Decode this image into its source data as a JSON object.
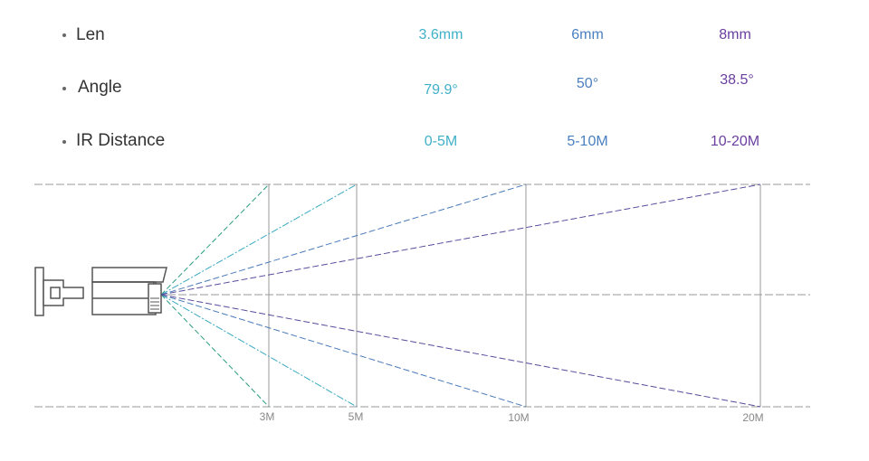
{
  "specs": {
    "rows": [
      {
        "label": "Len",
        "values": [
          "3.6mm",
          "6mm",
          "8mm"
        ]
      },
      {
        "label": "Angle",
        "values": [
          "79.9°",
          "50°",
          "38.5°"
        ]
      },
      {
        "label": "IR Distance",
        "values": [
          "0-5M",
          "5-10M",
          "10-20M"
        ]
      }
    ]
  },
  "distances": [
    "3M",
    "5M",
    "10M",
    "20M"
  ]
}
